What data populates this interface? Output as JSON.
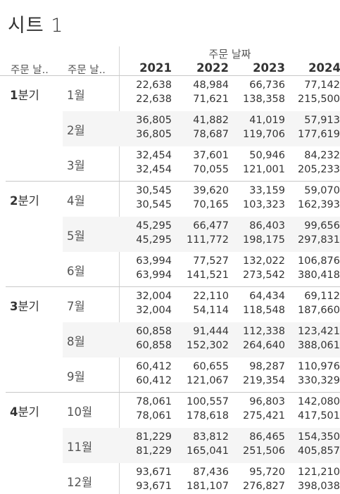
{
  "sheet_title": "시트 1",
  "header": {
    "top_label": "주문 날짜",
    "row_headers": [
      "주문 날..",
      "주문 날.."
    ],
    "years": [
      "2021",
      "2022",
      "2023",
      "2024"
    ]
  },
  "quarters": [
    {
      "num": "1",
      "suffix": "분기",
      "months": [
        {
          "label": "1월",
          "values": [
            [
              "22,638",
              "48,984",
              "66,736",
              "77,142"
            ],
            [
              "22,638",
              "71,621",
              "138,358",
              "215,500"
            ]
          ]
        },
        {
          "label": "2월",
          "values": [
            [
              "36,805",
              "41,882",
              "41,019",
              "57,913"
            ],
            [
              "36,805",
              "78,687",
              "119,706",
              "177,619"
            ]
          ]
        },
        {
          "label": "3월",
          "values": [
            [
              "32,454",
              "37,601",
              "50,946",
              "84,232"
            ],
            [
              "32,454",
              "70,055",
              "121,001",
              "205,233"
            ]
          ]
        }
      ]
    },
    {
      "num": "2",
      "suffix": "분기",
      "months": [
        {
          "label": "4월",
          "values": [
            [
              "30,545",
              "39,620",
              "33,159",
              "59,070"
            ],
            [
              "30,545",
              "70,165",
              "103,323",
              "162,393"
            ]
          ]
        },
        {
          "label": "5월",
          "values": [
            [
              "45,295",
              "66,477",
              "86,403",
              "99,656"
            ],
            [
              "45,295",
              "111,772",
              "198,175",
              "297,831"
            ]
          ]
        },
        {
          "label": "6월",
          "values": [
            [
              "63,994",
              "77,527",
              "132,022",
              "106,876"
            ],
            [
              "63,994",
              "141,521",
              "273,542",
              "380,418"
            ]
          ]
        }
      ]
    },
    {
      "num": "3",
      "suffix": "분기",
      "months": [
        {
          "label": "7월",
          "values": [
            [
              "32,004",
              "22,110",
              "64,434",
              "69,112"
            ],
            [
              "32,004",
              "54,114",
              "118,548",
              "187,660"
            ]
          ]
        },
        {
          "label": "8월",
          "values": [
            [
              "60,858",
              "91,444",
              "112,338",
              "123,421"
            ],
            [
              "60,858",
              "152,302",
              "264,640",
              "388,061"
            ]
          ]
        },
        {
          "label": "9월",
          "values": [
            [
              "60,412",
              "60,655",
              "98,287",
              "110,976"
            ],
            [
              "60,412",
              "121,067",
              "219,354",
              "330,329"
            ]
          ]
        }
      ]
    },
    {
      "num": "4",
      "suffix": "분기",
      "months": [
        {
          "label": "10월",
          "values": [
            [
              "78,061",
              "100,557",
              "96,803",
              "142,080"
            ],
            [
              "78,061",
              "178,618",
              "275,421",
              "417,501"
            ]
          ]
        },
        {
          "label": "11월",
          "values": [
            [
              "81,229",
              "83,812",
              "86,465",
              "154,350"
            ],
            [
              "81,229",
              "165,041",
              "251,506",
              "405,857"
            ]
          ]
        },
        {
          "label": "12월",
          "values": [
            [
              "93,671",
              "87,436",
              "95,720",
              "121,210"
            ],
            [
              "93,671",
              "181,107",
              "276,827",
              "398,038"
            ]
          ]
        }
      ]
    }
  ]
}
